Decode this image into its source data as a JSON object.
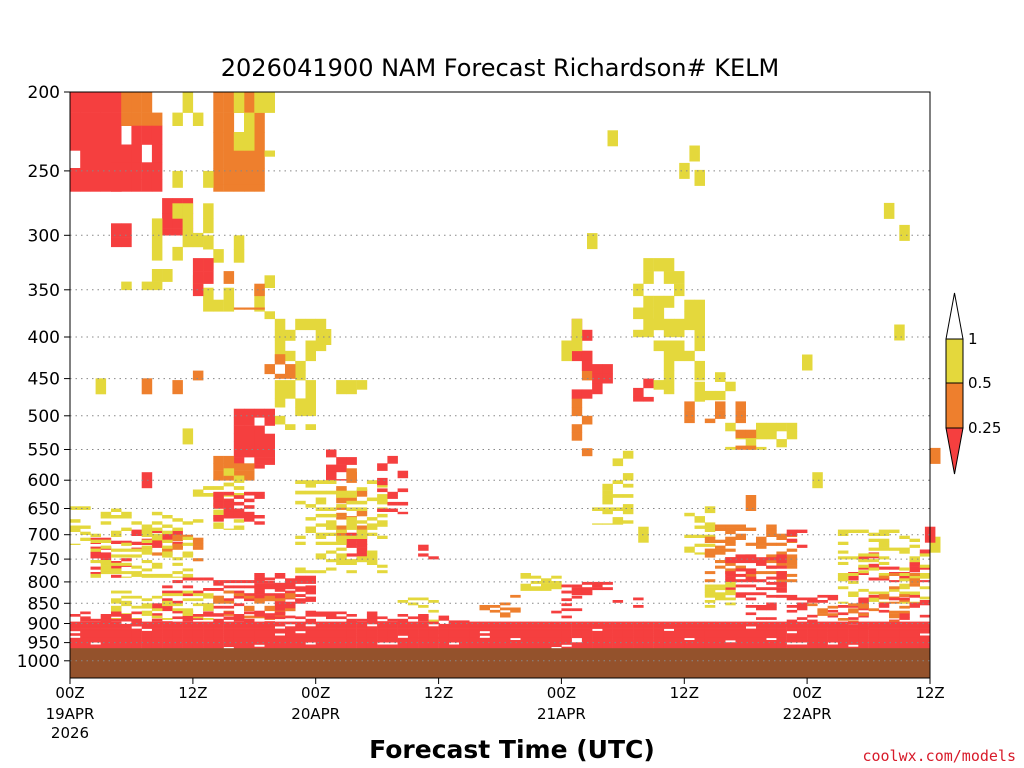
{
  "chart_data": {
    "type": "heatmap",
    "title": "2026041900 NAM Forecast Richardson# KELM",
    "xlabel": "Forecast Time (UTC)",
    "ylabel": "",
    "x_range_hours": [
      0,
      84
    ],
    "y_axis": {
      "scale": "log-pressure",
      "reversed": true,
      "range_hpa": [
        200,
        1050
      ]
    },
    "grid": "dotted horizontal lines at pressure ticks",
    "y_ticks": [
      200,
      250,
      300,
      350,
      400,
      450,
      500,
      550,
      600,
      650,
      700,
      750,
      800,
      850,
      900,
      950,
      1000
    ],
    "x_ticks": [
      {
        "hour": 0,
        "label": "00Z",
        "sub": [
          "19APR",
          "2026"
        ]
      },
      {
        "hour": 12,
        "label": "12Z",
        "sub": []
      },
      {
        "hour": 24,
        "label": "00Z",
        "sub": [
          "20APR"
        ]
      },
      {
        "hour": 36,
        "label": "12Z",
        "sub": []
      },
      {
        "hour": 48,
        "label": "00Z",
        "sub": [
          "21APR"
        ]
      },
      {
        "hour": 60,
        "label": "12Z",
        "sub": []
      },
      {
        "hour": 72,
        "label": "00Z",
        "sub": [
          "22APR"
        ]
      },
      {
        "hour": 84,
        "label": "12Z",
        "sub": []
      }
    ],
    "legend": {
      "placement": "right",
      "levels": [
        {
          "range": "< 0.25",
          "color": "#f53f3f"
        },
        {
          "range": "0.25 - 0.5",
          "color": "#ee7f2d"
        },
        {
          "range": "0.5 - 1",
          "color": "#e4d83c"
        },
        {
          "range": "> 1",
          "color": "#ffffff"
        }
      ],
      "tick_labels": [
        "0.25",
        "0.5",
        "1"
      ]
    },
    "ground": {
      "color": "#94522c",
      "top_hpa": 965
    },
    "colors": {
      "red": "#f53f3f",
      "orange": "#ee7f2d",
      "yellow": "#e4d83c",
      "white": "#ffffff"
    },
    "regions": [
      {
        "h": [
          0,
          5
        ],
        "p": [
          200,
          265
        ],
        "v": "red",
        "d": 0.92
      },
      {
        "h": [
          5,
          9
        ],
        "p": [
          200,
          220
        ],
        "v": "orange",
        "d": 0.9
      },
      {
        "h": [
          10,
          13
        ],
        "p": [
          200,
          220
        ],
        "v": "yellow",
        "d": 0.6
      },
      {
        "h": [
          14,
          19
        ],
        "p": [
          200,
          265
        ],
        "v": "orange",
        "d": 0.85
      },
      {
        "h": [
          16,
          20
        ],
        "p": [
          200,
          240
        ],
        "v": "yellow",
        "d": 0.5
      },
      {
        "h": [
          4,
          9
        ],
        "p": [
          220,
          265
        ],
        "v": "red",
        "d": 0.88
      },
      {
        "h": [
          9,
          12
        ],
        "p": [
          270,
          300
        ],
        "v": "red",
        "d": 0.9
      },
      {
        "h": [
          8,
          14
        ],
        "p": [
          250,
          330
        ],
        "v": "yellow",
        "d": 0.35
      },
      {
        "h": [
          4,
          6
        ],
        "p": [
          290,
          310
        ],
        "v": "red",
        "d": 0.8
      },
      {
        "h": [
          12,
          20
        ],
        "p": [
          300,
          380
        ],
        "v": "yellow",
        "d": 0.3
      },
      {
        "h": [
          15,
          19
        ],
        "p": [
          320,
          370
        ],
        "v": "orange",
        "d": 0.4
      },
      {
        "h": [
          11,
          14
        ],
        "p": [
          320,
          380
        ],
        "v": "red",
        "d": 0.35
      },
      {
        "h": [
          5,
          10
        ],
        "p": [
          330,
          350
        ],
        "v": "yellow",
        "d": 0.3
      },
      {
        "h": [
          20,
          25
        ],
        "p": [
          380,
          520
        ],
        "v": "yellow",
        "d": 0.55
      },
      {
        "h": [
          19,
          22
        ],
        "p": [
          420,
          450
        ],
        "v": "orange",
        "d": 0.5
      },
      {
        "h": [
          10,
          14
        ],
        "p": [
          440,
          470
        ],
        "v": "orange",
        "d": 0.3
      },
      {
        "h": [
          26,
          29
        ],
        "p": [
          440,
          470
        ],
        "v": "yellow",
        "d": 0.5
      },
      {
        "h": [
          16,
          20
        ],
        "p": [
          490,
          580
        ],
        "v": "red",
        "d": 0.75
      },
      {
        "h": [
          14,
          18
        ],
        "p": [
          560,
          600
        ],
        "v": "orange",
        "d": 0.6
      },
      {
        "h": [
          12,
          17
        ],
        "p": [
          580,
          690
        ],
        "v": "yellow",
        "d": 0.35
      },
      {
        "h": [
          14,
          19
        ],
        "p": [
          620,
          680
        ],
        "v": "red",
        "d": 0.55
      },
      {
        "h": [
          25,
          28
        ],
        "p": [
          550,
          600
        ],
        "v": "red",
        "d": 0.75
      },
      {
        "h": [
          26,
          29
        ],
        "p": [
          580,
          720
        ],
        "v": "orange",
        "d": 0.45
      },
      {
        "h": [
          27,
          29
        ],
        "p": [
          690,
          750
        ],
        "v": "red",
        "d": 0.7
      },
      {
        "h": [
          22,
          31
        ],
        "p": [
          600,
          780
        ],
        "v": "yellow",
        "d": 0.3
      },
      {
        "h": [
          30,
          33
        ],
        "p": [
          560,
          660
        ],
        "v": "red",
        "d": 0.4
      },
      {
        "h": [
          34,
          36
        ],
        "p": [
          720,
          760
        ],
        "v": "red",
        "d": 0.4
      },
      {
        "h": [
          6,
          11
        ],
        "p": [
          690,
          730
        ],
        "v": "red",
        "d": 0.6
      },
      {
        "h": [
          8,
          13
        ],
        "p": [
          700,
          760
        ],
        "v": "orange",
        "d": 0.35
      },
      {
        "h": [
          2,
          6
        ],
        "p": [
          700,
          790
        ],
        "v": "red",
        "d": 0.4
      },
      {
        "h": [
          2,
          12
        ],
        "p": [
          650,
          790
        ],
        "v": "yellow",
        "d": 0.3
      },
      {
        "h": [
          0,
          2
        ],
        "p": [
          640,
          720
        ],
        "v": "yellow",
        "d": 0.35
      },
      {
        "h": [
          49,
          51
        ],
        "p": [
          380,
          560
        ],
        "v": "orange",
        "d": 0.55
      },
      {
        "h": [
          49,
          51
        ],
        "p": [
          380,
          480
        ],
        "v": "red",
        "d": 0.5
      },
      {
        "h": [
          51,
          53
        ],
        "p": [
          420,
          470
        ],
        "v": "red",
        "d": 0.4
      },
      {
        "h": [
          48,
          50
        ],
        "p": [
          380,
          440
        ],
        "v": "yellow",
        "d": 0.6
      },
      {
        "h": [
          51,
          55
        ],
        "p": [
          540,
          680
        ],
        "v": "yellow",
        "d": 0.35
      },
      {
        "h": [
          55,
          57
        ],
        "p": [
          450,
          480
        ],
        "v": "red",
        "d": 0.8
      },
      {
        "h": [
          55,
          60
        ],
        "p": [
          320,
          400
        ],
        "v": "yellow",
        "d": 0.6
      },
      {
        "h": [
          57,
          62
        ],
        "p": [
          380,
          470
        ],
        "v": "yellow",
        "d": 0.45
      },
      {
        "h": [
          60,
          66
        ],
        "p": [
          480,
          510
        ],
        "v": "orange",
        "d": 0.55
      },
      {
        "h": [
          64,
          71
        ],
        "p": [
          510,
          550
        ],
        "v": "yellow",
        "d": 0.6
      },
      {
        "h": [
          65,
          67
        ],
        "p": [
          520,
          550
        ],
        "v": "orange",
        "d": 0.6
      },
      {
        "h": [
          60,
          62
        ],
        "p": [
          360,
          385
        ],
        "v": "yellow",
        "d": 0.8
      },
      {
        "h": [
          61,
          65
        ],
        "p": [
          430,
          480
        ],
        "v": "yellow",
        "d": 0.35
      },
      {
        "h": [
          60,
          63
        ],
        "p": [
          640,
          740
        ],
        "v": "yellow",
        "d": 0.35
      },
      {
        "h": [
          62,
          71
        ],
        "p": [
          680,
          800
        ],
        "v": "orange",
        "d": 0.45
      },
      {
        "h": [
          64,
          70
        ],
        "p": [
          740,
          840
        ],
        "v": "red",
        "d": 0.5
      },
      {
        "h": [
          62,
          65
        ],
        "p": [
          800,
          860
        ],
        "v": "yellow",
        "d": 0.6
      },
      {
        "h": [
          70,
          72
        ],
        "p": [
          690,
          730
        ],
        "v": "red",
        "d": 0.4
      },
      {
        "h": [
          76,
          84
        ],
        "p": [
          730,
          800
        ],
        "v": "red",
        "d": 0.35
      },
      {
        "h": [
          75,
          84
        ],
        "p": [
          690,
          850
        ],
        "v": "yellow",
        "d": 0.3
      },
      {
        "h": [
          79,
          84
        ],
        "p": [
          780,
          850
        ],
        "v": "orange",
        "d": 0.3
      },
      {
        "h": [
          44,
          48
        ],
        "p": [
          780,
          820
        ],
        "v": "yellow",
        "d": 0.7
      },
      {
        "h": [
          48,
          53
        ],
        "p": [
          800,
          830
        ],
        "v": "red",
        "d": 0.45
      },
      {
        "h": [
          53,
          56
        ],
        "p": [
          830,
          860
        ],
        "v": "red",
        "d": 0.35
      },
      {
        "h": [
          47,
          50
        ],
        "p": [
          820,
          900
        ],
        "v": "red",
        "d": 0.35
      },
      {
        "h": [
          40,
          44
        ],
        "p": [
          830,
          900
        ],
        "v": "orange",
        "d": 0.3
      },
      {
        "h": [
          32,
          36
        ],
        "p": [
          830,
          900
        ],
        "v": "yellow",
        "d": 0.25
      },
      {
        "h": [
          34,
          40
        ],
        "p": [
          880,
          940
        ],
        "v": "red",
        "d": 0.3
      },
      {
        "h": [
          8,
          24
        ],
        "p": [
          790,
          890
        ],
        "v": "red",
        "d": 0.35
      },
      {
        "h": [
          18,
          24
        ],
        "p": [
          780,
          850
        ],
        "v": "red",
        "d": 0.5
      },
      {
        "h": [
          4,
          14
        ],
        "p": [
          820,
          890
        ],
        "v": "yellow",
        "d": 0.3
      },
      {
        "h": [
          14,
          22
        ],
        "p": [
          820,
          890
        ],
        "v": "orange",
        "d": 0.3
      },
      {
        "h": [
          66,
          84
        ],
        "p": [
          830,
          910
        ],
        "v": "red",
        "d": 0.3
      },
      {
        "h": [
          72,
          82
        ],
        "p": [
          850,
          920
        ],
        "v": "orange",
        "d": 0.25
      },
      {
        "h": [
          0,
          84
        ],
        "p": [
          895,
          965
        ],
        "v": "red",
        "d": 0.95
      },
      {
        "h": [
          0,
          35
        ],
        "p": [
          870,
          900
        ],
        "v": "red",
        "d": 0.4
      }
    ],
    "singles": [
      {
        "h": 52.5,
        "p": 228,
        "v": "yellow"
      },
      {
        "h": 60.5,
        "p": 238,
        "v": "yellow"
      },
      {
        "h": 59.5,
        "p": 250,
        "v": "yellow"
      },
      {
        "h": 61,
        "p": 255,
        "v": "yellow"
      },
      {
        "h": 79.5,
        "p": 280,
        "v": "yellow"
      },
      {
        "h": 81,
        "p": 298,
        "v": "yellow"
      },
      {
        "h": 50.5,
        "p": 305,
        "v": "yellow"
      },
      {
        "h": 80.5,
        "p": 395,
        "v": "yellow"
      },
      {
        "h": 71.5,
        "p": 430,
        "v": "yellow"
      },
      {
        "h": 72.5,
        "p": 600,
        "v": "yellow"
      },
      {
        "h": 2.5,
        "p": 460,
        "v": "yellow"
      },
      {
        "h": 24.5,
        "p": 400,
        "v": "yellow"
      },
      {
        "h": 11,
        "p": 530,
        "v": "yellow"
      },
      {
        "h": 84,
        "p": 560,
        "v": "orange"
      },
      {
        "h": 84,
        "p": 720,
        "v": "yellow"
      },
      {
        "h": 83.5,
        "p": 700,
        "v": "red"
      },
      {
        "h": 66,
        "p": 640,
        "v": "orange"
      },
      {
        "h": 55.5,
        "p": 700,
        "v": "yellow"
      },
      {
        "h": 7,
        "p": 460,
        "v": "orange"
      },
      {
        "h": 7,
        "p": 600,
        "v": "red"
      }
    ]
  },
  "footer": {
    "credit": "coolwx.com/models"
  }
}
